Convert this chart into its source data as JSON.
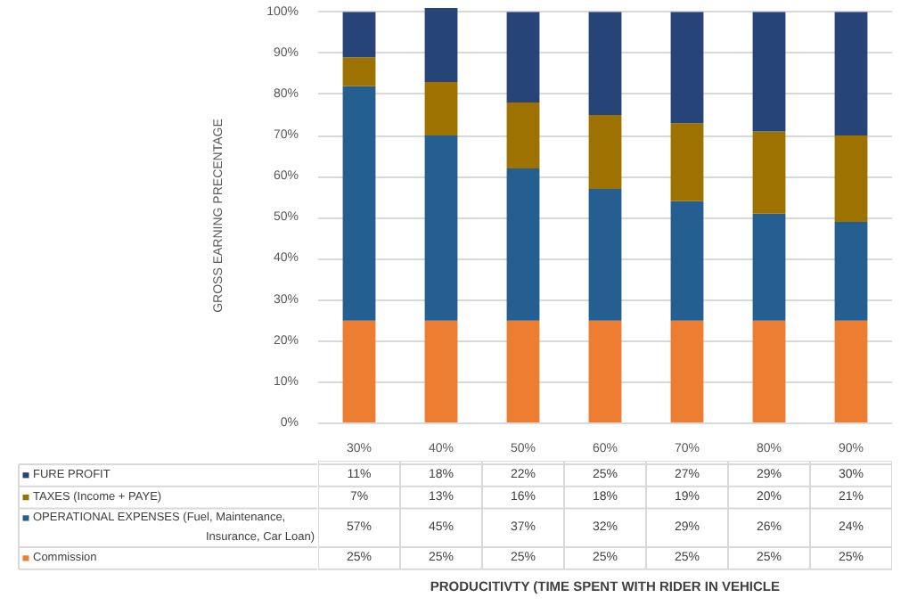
{
  "chart_data": {
    "type": "bar",
    "stacked": true,
    "ylabel": "GROSS EARNING PRECENTAGE",
    "annotations": [
      "PRODUCITIVTY (TIME SPENT WITH RIDER IN VEHICLE"
    ],
    "categories": [
      "30%",
      "40%",
      "50%",
      "60%",
      "70%",
      "80%",
      "90%"
    ],
    "ylim": [
      0,
      101
    ],
    "yticks": [
      {
        "value": 0,
        "label": "0%"
      },
      {
        "value": 10,
        "label": "10%"
      },
      {
        "value": 20,
        "label": "20%"
      },
      {
        "value": 30,
        "label": "30%"
      },
      {
        "value": 40,
        "label": "40%"
      },
      {
        "value": 50,
        "label": "50%"
      },
      {
        "value": 60,
        "label": "60%"
      },
      {
        "value": 70,
        "label": "70%"
      },
      {
        "value": 80,
        "label": "80%"
      },
      {
        "value": 90,
        "label": "90%"
      },
      {
        "value": 100,
        "label": "100%"
      }
    ],
    "grid": "y",
    "legend": "bottom",
    "series": [
      {
        "name": "Commission",
        "color": "#ed7d31",
        "values": [
          25,
          25,
          25,
          25,
          25,
          25,
          25
        ],
        "value_labels": [
          "25%",
          "25%",
          "25%",
          "25%",
          "25%",
          "25%",
          "25%"
        ]
      },
      {
        "name": "OPERATIONAL EXPENSES (Fuel, Maintenance, Insurance, Car Loan)",
        "color": "#255e91",
        "values": [
          57,
          45,
          37,
          32,
          29,
          26,
          24
        ],
        "value_labels": [
          "57%",
          "45%",
          "37%",
          "32%",
          "29%",
          "26%",
          "24%"
        ]
      },
      {
        "name": "TAXES (Income + PAYE)",
        "color": "#9e7200",
        "values": [
          7,
          13,
          16,
          18,
          19,
          20,
          21
        ],
        "value_labels": [
          "7%",
          "13%",
          "16%",
          "18%",
          "19%",
          "20%",
          "21%"
        ]
      },
      {
        "name": "FURE PROFIT",
        "color": "#264478",
        "values": [
          11,
          18,
          22,
          25,
          27,
          29,
          30
        ],
        "value_labels": [
          "11%",
          "18%",
          "22%",
          "25%",
          "27%",
          "29%",
          "30%"
        ]
      }
    ]
  }
}
